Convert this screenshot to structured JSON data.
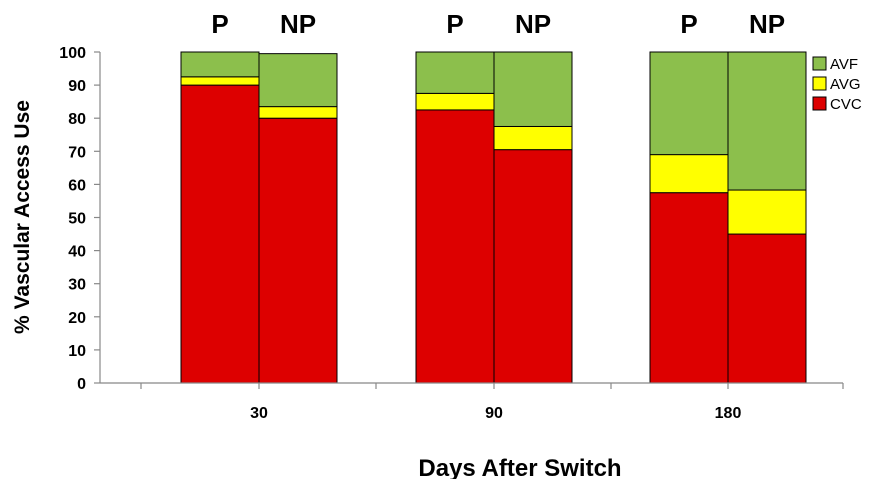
{
  "chart_data": {
    "type": "bar",
    "stacked": true,
    "groups": [
      "30",
      "90",
      "180"
    ],
    "bar_labels": [
      "P",
      "NP"
    ],
    "bars": [
      {
        "group": "30",
        "label": "P",
        "CVC": 90,
        "AVG": 2.5,
        "AVF": 7.5
      },
      {
        "group": "30",
        "label": "NP",
        "CVC": 80,
        "AVG": 3.5,
        "AVF": 16
      },
      {
        "group": "90",
        "label": "P",
        "CVC": 82.5,
        "AVG": 5,
        "AVF": 12.5
      },
      {
        "group": "90",
        "label": "NP",
        "CVC": 70.5,
        "AVG": 7,
        "AVF": 22.5
      },
      {
        "group": "180",
        "label": "P",
        "CVC": 57.5,
        "AVG": 11.5,
        "AVF": 31
      },
      {
        "group": "180",
        "label": "NP",
        "CVC": 45,
        "AVG": 13.3,
        "AVF": 41.7
      }
    ],
    "series": [
      {
        "name": "CVC",
        "color": "#dd0000"
      },
      {
        "name": "AVG",
        "color": "#ffff00"
      },
      {
        "name": "AVF",
        "color": "#8cbf4c"
      }
    ],
    "legend_order": [
      "AVF",
      "AVG",
      "CVC"
    ],
    "legend_position": "top-right",
    "ylim": [
      0,
      100
    ],
    "yticks": [
      0,
      10,
      20,
      30,
      40,
      50,
      60,
      70,
      80,
      90,
      100
    ],
    "ylabel": "% Vascular Access Use",
    "xlabel": "Days After Switch",
    "grid": false
  }
}
